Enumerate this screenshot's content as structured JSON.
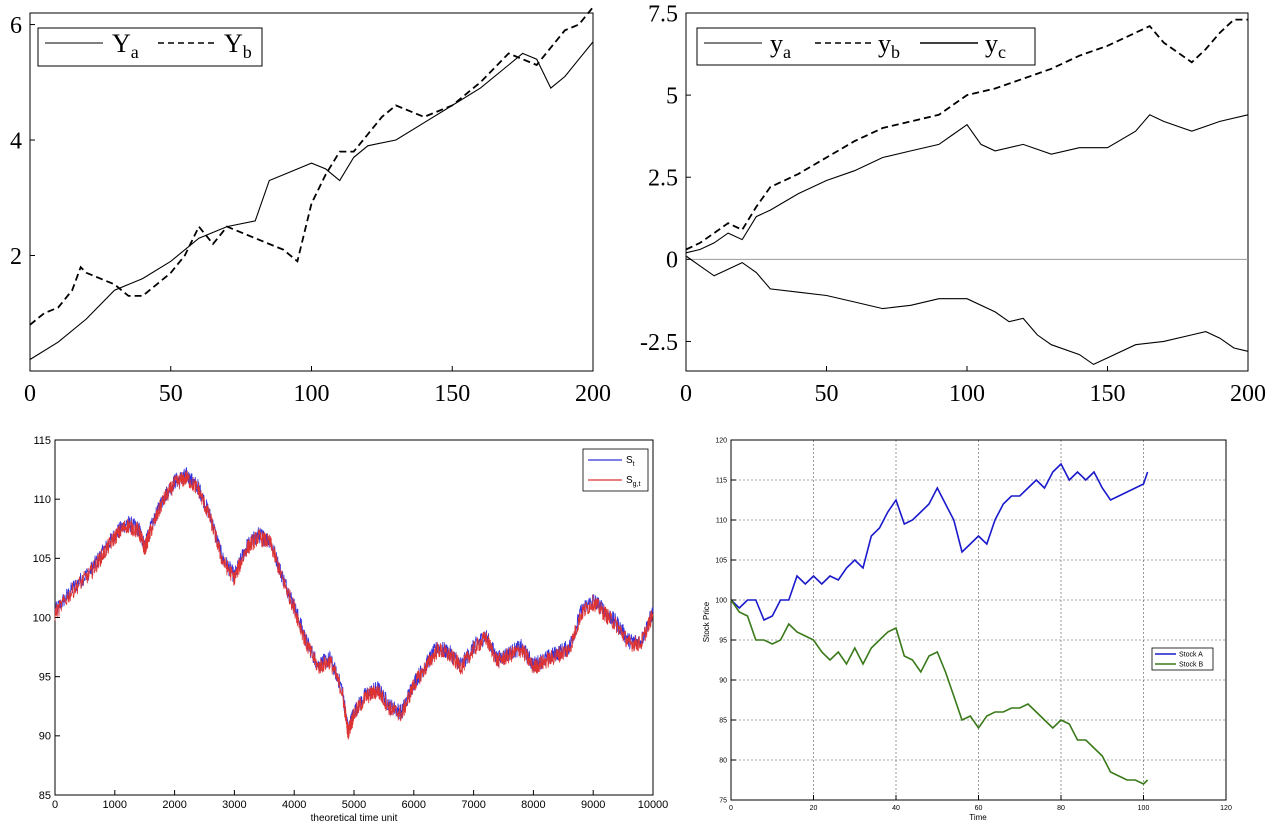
{
  "chart_data": [
    {
      "type": "line",
      "title": "",
      "xlabel": "",
      "ylabel": "",
      "xlim": [
        0,
        200
      ],
      "ylim": [
        0,
        6.2
      ],
      "xticks": [
        0,
        50,
        100,
        150,
        200
      ],
      "yticks": [
        2,
        4,
        6
      ],
      "grid": false,
      "legend_position": "top-left",
      "series": [
        {
          "name": "Ya",
          "style": "solid",
          "x": [
            0,
            10,
            20,
            30,
            40,
            50,
            60,
            70,
            80,
            85,
            90,
            100,
            105,
            110,
            115,
            120,
            130,
            140,
            150,
            160,
            170,
            175,
            180,
            185,
            190,
            195,
            200
          ],
          "y": [
            0.2,
            0.5,
            0.9,
            1.4,
            1.6,
            1.9,
            2.3,
            2.5,
            2.6,
            3.3,
            3.4,
            3.6,
            3.5,
            3.3,
            3.7,
            3.9,
            4.0,
            4.3,
            4.6,
            4.9,
            5.3,
            5.5,
            5.4,
            4.9,
            5.1,
            5.4,
            5.7
          ]
        },
        {
          "name": "Yb",
          "style": "dashed",
          "x": [
            0,
            5,
            10,
            15,
            18,
            20,
            25,
            30,
            35,
            40,
            45,
            50,
            55,
            60,
            65,
            70,
            75,
            80,
            85,
            90,
            95,
            100,
            105,
            110,
            115,
            120,
            125,
            130,
            135,
            140,
            150,
            160,
            170,
            180,
            185,
            190,
            195,
            200
          ],
          "y": [
            0.8,
            1.0,
            1.1,
            1.4,
            1.8,
            1.7,
            1.6,
            1.5,
            1.3,
            1.3,
            1.5,
            1.7,
            2.0,
            2.5,
            2.2,
            2.5,
            2.4,
            2.3,
            2.2,
            2.1,
            1.9,
            2.9,
            3.4,
            3.8,
            3.8,
            4.1,
            4.4,
            4.6,
            4.5,
            4.4,
            4.6,
            5.0,
            5.5,
            5.3,
            5.6,
            5.9,
            6.0,
            6.3
          ]
        }
      ]
    },
    {
      "type": "line",
      "title": "",
      "xlabel": "",
      "ylabel": "",
      "xlim": [
        0,
        200
      ],
      "ylim": [
        -3.4,
        7.5
      ],
      "xticks": [
        0,
        50,
        100,
        150,
        200
      ],
      "yticks": [
        -2.5,
        0,
        2.5,
        5,
        7.5
      ],
      "yticklabels": [
        "-2.5",
        "0",
        "2.5",
        "5",
        "7.5"
      ],
      "zero_line": true,
      "grid": false,
      "legend_position": "top",
      "series": [
        {
          "name": "ya",
          "style": "solid",
          "x": [
            0,
            5,
            10,
            15,
            20,
            25,
            30,
            40,
            50,
            60,
            70,
            80,
            90,
            95,
            100,
            105,
            110,
            120,
            130,
            140,
            150,
            160,
            165,
            170,
            180,
            190,
            200
          ],
          "y": [
            0.2,
            0.3,
            0.5,
            0.8,
            0.6,
            1.3,
            1.5,
            2.0,
            2.4,
            2.7,
            3.1,
            3.3,
            3.5,
            3.8,
            4.1,
            3.5,
            3.3,
            3.5,
            3.2,
            3.4,
            3.4,
            3.9,
            4.4,
            4.2,
            3.9,
            4.2,
            4.4
          ]
        },
        {
          "name": "yb",
          "style": "dashed",
          "x": [
            0,
            5,
            10,
            15,
            20,
            25,
            30,
            40,
            50,
            60,
            70,
            80,
            90,
            100,
            110,
            120,
            130,
            140,
            150,
            160,
            165,
            170,
            180,
            185,
            190,
            195,
            200
          ],
          "y": [
            0.3,
            0.5,
            0.8,
            1.1,
            0.9,
            1.6,
            2.2,
            2.6,
            3.1,
            3.6,
            4.0,
            4.2,
            4.4,
            5.0,
            5.2,
            5.5,
            5.8,
            6.2,
            6.5,
            6.9,
            7.1,
            6.6,
            6.0,
            6.4,
            6.9,
            7.3,
            7.3
          ]
        },
        {
          "name": "yc",
          "style": "solid",
          "x": [
            0,
            5,
            10,
            15,
            20,
            25,
            30,
            40,
            50,
            60,
            70,
            80,
            90,
            100,
            110,
            115,
            120,
            125,
            130,
            140,
            145,
            150,
            160,
            170,
            180,
            185,
            190,
            195,
            200
          ],
          "y": [
            0.1,
            -0.2,
            -0.5,
            -0.3,
            -0.1,
            -0.4,
            -0.9,
            -1.0,
            -1.1,
            -1.3,
            -1.5,
            -1.4,
            -1.2,
            -1.2,
            -1.6,
            -1.9,
            -1.8,
            -2.3,
            -2.6,
            -2.9,
            -3.2,
            -3.0,
            -2.6,
            -2.5,
            -2.3,
            -2.2,
            -2.4,
            -2.7,
            -2.8
          ]
        }
      ]
    },
    {
      "type": "line",
      "title": "",
      "xlabel": "theoretical time unit",
      "ylabel": "",
      "xlim": [
        0,
        10000
      ],
      "ylim": [
        85,
        115
      ],
      "xticks": [
        0,
        1000,
        2000,
        3000,
        4000,
        5000,
        6000,
        7000,
        8000,
        9000,
        10000
      ],
      "yticks": [
        85,
        90,
        95,
        100,
        105,
        110,
        115
      ],
      "grid": false,
      "legend_position": "top-right",
      "series": [
        {
          "name": "S_t",
          "color": "#3333dd",
          "x": [
            0,
            300,
            600,
            800,
            1000,
            1200,
            1400,
            1500,
            1600,
            1800,
            2000,
            2200,
            2400,
            2600,
            2800,
            3000,
            3200,
            3400,
            3600,
            3800,
            4000,
            4200,
            4400,
            4600,
            4800,
            4900,
            5000,
            5200,
            5400,
            5600,
            5800,
            6000,
            6200,
            6400,
            6600,
            6800,
            7000,
            7200,
            7400,
            7600,
            7800,
            8000,
            8200,
            8400,
            8600,
            8800,
            9000,
            9200,
            9400,
            9600,
            9800,
            10000
          ],
          "y": [
            100.5,
            102.5,
            104.0,
            105.5,
            107.0,
            108.0,
            107.5,
            106.0,
            107.5,
            110.0,
            111.5,
            112.0,
            111.0,
            108.5,
            105.0,
            103.5,
            106.0,
            107.0,
            106.5,
            103.5,
            101.0,
            98.0,
            96.0,
            96.5,
            94.0,
            90.5,
            92.0,
            93.5,
            94.0,
            92.5,
            92.0,
            94.5,
            96.0,
            97.5,
            97.0,
            96.0,
            97.5,
            98.5,
            96.5,
            97.0,
            97.5,
            96.0,
            96.5,
            97.0,
            97.5,
            100.5,
            101.5,
            100.5,
            99.5,
            98.0,
            98.0,
            100.5
          ]
        },
        {
          "name": "S_g,t",
          "color": "#dd3333",
          "x": [
            0,
            300,
            600,
            800,
            1000,
            1200,
            1400,
            1500,
            1600,
            1800,
            2000,
            2200,
            2400,
            2600,
            2800,
            3000,
            3200,
            3400,
            3600,
            3800,
            4000,
            4200,
            4400,
            4600,
            4800,
            4900,
            5000,
            5200,
            5400,
            5600,
            5800,
            6000,
            6200,
            6400,
            6600,
            6800,
            7000,
            7200,
            7400,
            7600,
            7800,
            8000,
            8200,
            8400,
            8600,
            8800,
            9000,
            9200,
            9400,
            9600,
            9800,
            10000
          ],
          "y": [
            100.3,
            102.3,
            103.8,
            105.3,
            106.8,
            107.8,
            107.3,
            105.8,
            107.3,
            109.8,
            111.3,
            111.8,
            110.8,
            108.3,
            104.8,
            103.3,
            105.8,
            106.8,
            106.3,
            103.3,
            100.8,
            97.8,
            95.8,
            96.3,
            93.8,
            90.3,
            91.8,
            93.3,
            93.8,
            92.3,
            91.8,
            94.3,
            95.8,
            97.3,
            96.8,
            95.8,
            97.3,
            98.3,
            96.3,
            96.8,
            97.3,
            95.8,
            96.3,
            96.8,
            97.3,
            100.3,
            101.3,
            100.3,
            99.3,
            97.8,
            97.8,
            100.3
          ]
        }
      ]
    },
    {
      "type": "line",
      "title": "",
      "xlabel": "Time",
      "ylabel": "Stock Price",
      "xlim": [
        0,
        120
      ],
      "ylim": [
        75,
        120
      ],
      "xticks": [
        0,
        20,
        40,
        60,
        80,
        100,
        120
      ],
      "yticks": [
        75,
        80,
        85,
        90,
        95,
        100,
        105,
        110,
        115,
        120
      ],
      "grid": true,
      "legend_position": "right",
      "series": [
        {
          "name": "Stock A",
          "color": "#1a1acc",
          "x": [
            0,
            2,
            4,
            6,
            8,
            10,
            12,
            14,
            16,
            18,
            20,
            22,
            24,
            26,
            28,
            30,
            32,
            34,
            36,
            38,
            40,
            42,
            44,
            46,
            48,
            50,
            52,
            54,
            56,
            58,
            60,
            62,
            64,
            66,
            68,
            70,
            72,
            74,
            76,
            78,
            80,
            82,
            84,
            86,
            88,
            90,
            92,
            94,
            96,
            98,
            100,
            101
          ],
          "y": [
            100,
            99,
            100,
            100,
            97.5,
            98,
            100,
            100,
            103,
            102,
            103,
            102,
            103,
            102.5,
            104,
            105,
            104,
            108,
            109,
            111,
            112.5,
            109.5,
            110,
            111,
            112,
            114,
            112,
            110,
            106,
            107,
            108,
            107,
            110,
            112,
            113,
            113,
            114,
            115,
            114,
            116,
            117,
            115,
            116,
            115,
            116,
            114,
            112.5,
            113,
            113.5,
            114,
            114.5,
            116
          ]
        },
        {
          "name": "Stock B",
          "color": "#3a7a1a",
          "x": [
            0,
            2,
            4,
            6,
            8,
            10,
            12,
            14,
            16,
            18,
            20,
            22,
            24,
            26,
            28,
            30,
            32,
            34,
            36,
            38,
            40,
            42,
            44,
            46,
            48,
            50,
            52,
            54,
            56,
            58,
            60,
            62,
            64,
            66,
            68,
            70,
            72,
            74,
            76,
            78,
            80,
            82,
            84,
            86,
            88,
            90,
            92,
            94,
            96,
            98,
            100,
            101
          ],
          "y": [
            100,
            98.5,
            98,
            95,
            95,
            94.5,
            95,
            97,
            96,
            95.5,
            95,
            93.5,
            92.5,
            93.5,
            92,
            94,
            92,
            94,
            95,
            96,
            96.5,
            93,
            92.5,
            91,
            93,
            93.5,
            91,
            88,
            85,
            85.5,
            84,
            85.5,
            86,
            86,
            86.5,
            86.5,
            87,
            86,
            85,
            84,
            85,
            84.5,
            82.5,
            82.5,
            81.5,
            80.5,
            78.5,
            78,
            77.5,
            77.5,
            77,
            77.5
          ]
        }
      ]
    }
  ]
}
